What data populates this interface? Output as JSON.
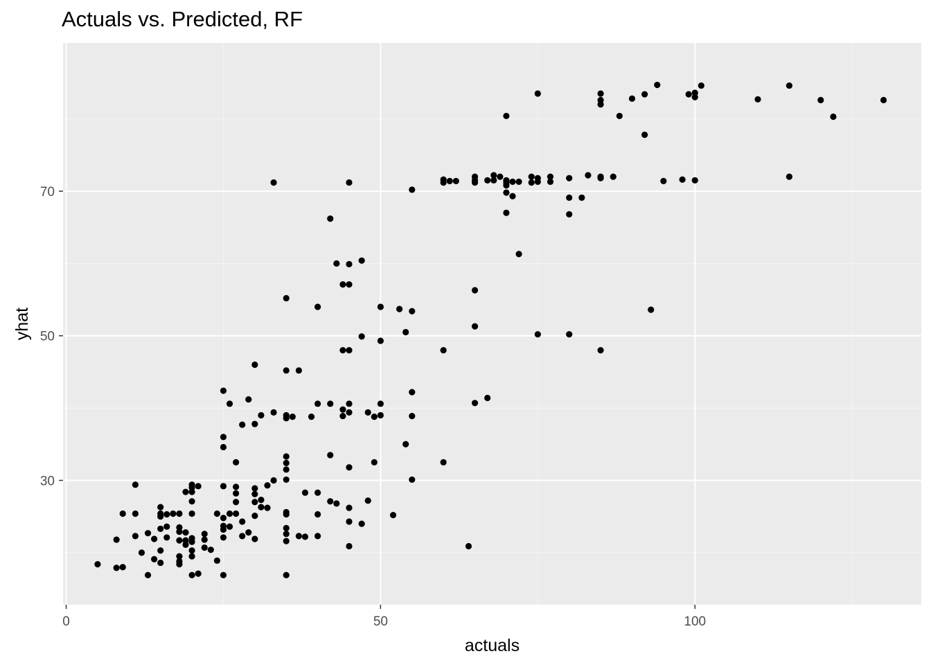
{
  "chart_data": {
    "type": "scatter",
    "title": "Actuals vs. Predicted, RF",
    "xlabel": "actuals",
    "ylabel": "yhat",
    "xlim": [
      -0.5,
      136
    ],
    "ylim": [
      12.8,
      90.5
    ],
    "x_ticks": [
      0,
      50,
      100
    ],
    "y_ticks": [
      30,
      50,
      70
    ],
    "grid": true,
    "legend": "none",
    "colors": {
      "panel": "#ebebeb",
      "grid_major": "#ffffff",
      "grid_minor": "#f5f5f5",
      "point": "#000000",
      "tick_text": "#4d4d4d"
    },
    "points": [
      [
        5,
        18.4
      ],
      [
        8,
        17.9
      ],
      [
        9,
        18
      ],
      [
        13,
        16.9
      ],
      [
        20,
        16.9
      ],
      [
        21,
        17.1
      ],
      [
        25,
        16.9
      ],
      [
        35,
        16.9
      ],
      [
        8,
        21.8
      ],
      [
        9,
        25.4
      ],
      [
        11,
        25.4
      ],
      [
        11,
        22.3
      ],
      [
        11,
        29.4
      ],
      [
        12,
        20
      ],
      [
        13,
        22.7
      ],
      [
        14,
        21.9
      ],
      [
        14,
        19.1
      ],
      [
        15,
        18.6
      ],
      [
        15,
        20.3
      ],
      [
        15,
        23.3
      ],
      [
        15,
        25
      ],
      [
        15,
        25.4
      ],
      [
        15,
        26.3
      ],
      [
        16,
        23.6
      ],
      [
        16,
        22.1
      ],
      [
        16,
        25.3
      ],
      [
        17,
        25.4
      ],
      [
        18,
        25.4
      ],
      [
        18,
        23.5
      ],
      [
        18,
        22.9
      ],
      [
        18,
        21.7
      ],
      [
        18,
        19.5
      ],
      [
        18,
        18.8
      ],
      [
        18,
        18.4
      ],
      [
        19,
        28.4
      ],
      [
        19,
        22.8
      ],
      [
        19,
        21.7
      ],
      [
        19,
        21.1
      ],
      [
        20,
        29.4
      ],
      [
        20,
        29
      ],
      [
        20,
        28.4
      ],
      [
        20,
        27.1
      ],
      [
        20,
        25.4
      ],
      [
        20,
        22
      ],
      [
        20,
        21.5
      ],
      [
        20,
        20.3
      ],
      [
        20,
        19.5
      ],
      [
        21,
        29.2
      ],
      [
        22,
        22.6
      ],
      [
        22,
        21.8
      ],
      [
        22,
        20.7
      ],
      [
        23,
        20.4
      ],
      [
        24,
        25.4
      ],
      [
        24,
        18.9
      ],
      [
        25,
        42.4
      ],
      [
        25,
        36
      ],
      [
        25,
        34.6
      ],
      [
        25,
        29.2
      ],
      [
        25,
        24.8
      ],
      [
        25,
        23.7
      ],
      [
        25,
        23.2
      ],
      [
        25,
        22.1
      ],
      [
        26,
        40.6
      ],
      [
        26,
        25.4
      ],
      [
        26,
        23.6
      ],
      [
        27,
        32.5
      ],
      [
        27,
        29.1
      ],
      [
        27,
        28.2
      ],
      [
        27,
        27
      ],
      [
        27,
        25.4
      ],
      [
        28,
        37.7
      ],
      [
        28,
        24.3
      ],
      [
        28,
        22.3
      ],
      [
        29,
        41.2
      ],
      [
        29,
        22.8
      ],
      [
        30,
        46
      ],
      [
        30,
        37.8
      ],
      [
        30,
        28.9
      ],
      [
        30,
        28.1
      ],
      [
        30,
        27
      ],
      [
        30,
        25.1
      ],
      [
        30,
        21.9
      ],
      [
        31,
        39
      ],
      [
        31,
        27.3
      ],
      [
        31,
        26.3
      ],
      [
        32,
        29.3
      ],
      [
        32,
        26.2
      ],
      [
        33,
        39.4
      ],
      [
        33,
        30
      ],
      [
        33,
        71.2
      ],
      [
        35,
        55.2
      ],
      [
        35,
        45.2
      ],
      [
        35,
        39
      ],
      [
        35,
        38.6
      ],
      [
        35,
        33.3
      ],
      [
        35,
        32.4
      ],
      [
        35,
        31.5
      ],
      [
        35,
        30.1
      ],
      [
        35,
        25.6
      ],
      [
        35,
        25.3
      ],
      [
        35,
        23.4
      ],
      [
        35,
        22.6
      ],
      [
        35,
        21.6
      ],
      [
        36,
        38.8
      ],
      [
        37,
        45.2
      ],
      [
        37,
        22.3
      ],
      [
        38,
        28.3
      ],
      [
        38,
        22.2
      ],
      [
        39,
        38.8
      ],
      [
        40,
        54
      ],
      [
        40,
        40.6
      ],
      [
        40,
        28.3
      ],
      [
        40,
        25.3
      ],
      [
        40,
        22.3
      ],
      [
        42,
        66.2
      ],
      [
        42,
        40.6
      ],
      [
        42,
        33.5
      ],
      [
        42,
        27.1
      ],
      [
        43,
        60
      ],
      [
        43,
        26.8
      ],
      [
        44,
        57.1
      ],
      [
        44,
        48
      ],
      [
        44,
        39.8
      ],
      [
        44,
        38.9
      ],
      [
        45,
        71.2
      ],
      [
        45,
        59.9
      ],
      [
        45,
        57.1
      ],
      [
        45,
        48
      ],
      [
        45,
        40.6
      ],
      [
        45,
        39.4
      ],
      [
        45,
        31.8
      ],
      [
        45,
        26.2
      ],
      [
        45,
        24.3
      ],
      [
        45,
        20.9
      ],
      [
        47,
        60.4
      ],
      [
        47,
        49.9
      ],
      [
        47,
        24
      ],
      [
        48,
        39.4
      ],
      [
        48,
        27.2
      ],
      [
        49,
        38.8
      ],
      [
        49,
        32.5
      ],
      [
        50,
        54
      ],
      [
        50,
        49.3
      ],
      [
        50,
        40.6
      ],
      [
        50,
        39
      ],
      [
        52,
        25.2
      ],
      [
        53,
        53.7
      ],
      [
        54,
        50.5
      ],
      [
        54,
        35
      ],
      [
        55,
        70.2
      ],
      [
        55,
        53.4
      ],
      [
        55,
        42.2
      ],
      [
        55,
        38.9
      ],
      [
        55,
        30.1
      ],
      [
        60,
        71.6
      ],
      [
        60,
        71.2
      ],
      [
        60,
        48
      ],
      [
        60,
        32.5
      ],
      [
        61,
        71.4
      ],
      [
        62,
        71.4
      ],
      [
        64,
        20.9
      ],
      [
        65,
        72
      ],
      [
        65,
        71.5
      ],
      [
        65,
        71.2
      ],
      [
        65,
        56.3
      ],
      [
        65,
        51.3
      ],
      [
        65,
        40.7
      ],
      [
        67,
        41.4
      ],
      [
        67,
        71.5
      ],
      [
        68,
        72.2
      ],
      [
        68,
        71.5
      ],
      [
        69,
        72
      ],
      [
        70,
        80.4
      ],
      [
        70,
        71.5
      ],
      [
        70,
        71.2
      ],
      [
        70,
        70.8
      ],
      [
        70,
        69.8
      ],
      [
        70,
        67
      ],
      [
        71,
        71.3
      ],
      [
        71,
        69.3
      ],
      [
        72,
        61.3
      ],
      [
        72,
        71.3
      ],
      [
        75,
        83.5
      ],
      [
        75,
        71.8
      ],
      [
        75,
        71.3
      ],
      [
        75,
        50.2
      ],
      [
        74,
        72
      ],
      [
        74,
        71.2
      ],
      [
        77,
        72
      ],
      [
        77,
        71.3
      ],
      [
        80,
        71.8
      ],
      [
        80,
        69.1
      ],
      [
        80,
        66.8
      ],
      [
        80,
        50.2
      ],
      [
        82,
        69.1
      ],
      [
        83,
        72.2
      ],
      [
        85,
        83.5
      ],
      [
        85,
        82.6
      ],
      [
        85,
        82
      ],
      [
        85,
        72
      ],
      [
        85,
        71.8
      ],
      [
        85,
        48
      ],
      [
        87,
        72
      ],
      [
        88,
        80.4
      ],
      [
        90,
        82.8
      ],
      [
        92,
        83.4
      ],
      [
        92,
        77.8
      ],
      [
        93,
        53.6
      ],
      [
        94,
        84.7
      ],
      [
        95,
        71.4
      ],
      [
        98,
        71.6
      ],
      [
        99,
        83.4
      ],
      [
        100,
        83.6
      ],
      [
        100,
        83
      ],
      [
        100,
        71.5
      ],
      [
        101,
        84.6
      ],
      [
        110,
        82.7
      ],
      [
        115,
        84.6
      ],
      [
        115,
        72
      ],
      [
        120,
        82.6
      ],
      [
        122,
        80.3
      ],
      [
        130,
        82.6
      ]
    ]
  }
}
